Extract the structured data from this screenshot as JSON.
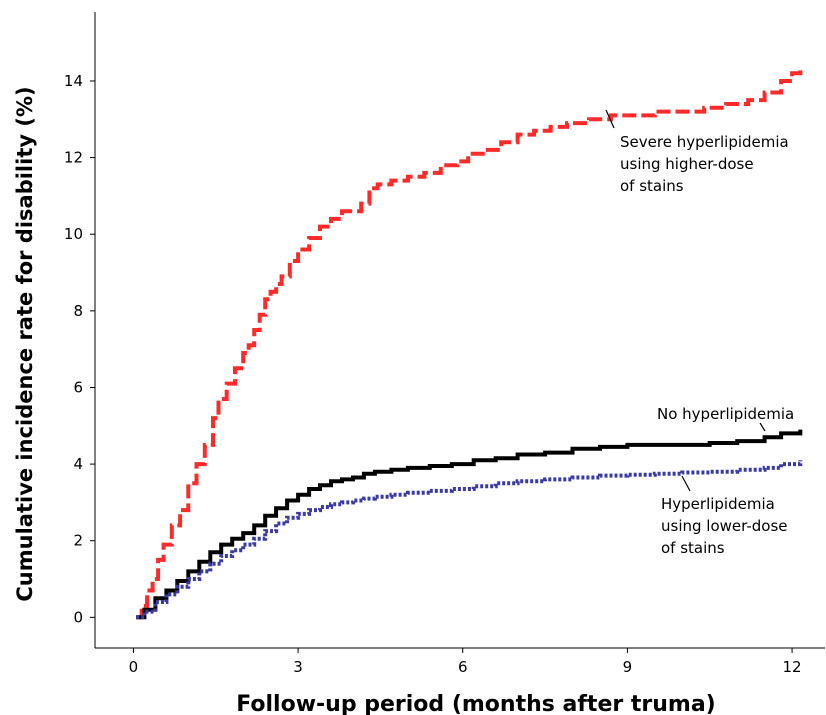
{
  "chart_data": {
    "type": "line",
    "title": "",
    "xlabel": "Follow-up period (months after truma)",
    "ylabel": "Cumulative incidence rate for disability (%)",
    "xlim": [
      -0.7,
      12.6
    ],
    "ylim": [
      -0.8,
      15.8
    ],
    "x_ticks": [
      0,
      3,
      6,
      9,
      12
    ],
    "y_ticks": [
      0,
      2,
      4,
      6,
      8,
      10,
      12,
      14
    ],
    "grid": false,
    "legend": "none (direct labels)",
    "series": [
      {
        "name": "Severe hyperlipidemia using higher-dose of stains",
        "color": "#ff2a2a",
        "style": "dashed",
        "points": [
          [
            0.05,
            0
          ],
          [
            0.15,
            0.3
          ],
          [
            0.25,
            0.7
          ],
          [
            0.35,
            1.0
          ],
          [
            0.45,
            1.5
          ],
          [
            0.55,
            1.9
          ],
          [
            0.7,
            2.4
          ],
          [
            0.85,
            2.8
          ],
          [
            1.0,
            3.5
          ],
          [
            1.15,
            4.0
          ],
          [
            1.3,
            4.5
          ],
          [
            1.45,
            5.2
          ],
          [
            1.55,
            5.7
          ],
          [
            1.7,
            6.1
          ],
          [
            1.85,
            6.5
          ],
          [
            2.0,
            6.9
          ],
          [
            2.1,
            7.1
          ],
          [
            2.2,
            7.5
          ],
          [
            2.3,
            7.9
          ],
          [
            2.4,
            8.3
          ],
          [
            2.5,
            8.5
          ],
          [
            2.6,
            8.7
          ],
          [
            2.7,
            8.9
          ],
          [
            2.85,
            9.3
          ],
          [
            3.0,
            9.6
          ],
          [
            3.2,
            9.9
          ],
          [
            3.4,
            10.2
          ],
          [
            3.6,
            10.4
          ],
          [
            3.8,
            10.6
          ],
          [
            4.0,
            10.6
          ],
          [
            4.15,
            10.8
          ],
          [
            4.3,
            11.2
          ],
          [
            4.45,
            11.3
          ],
          [
            4.7,
            11.4
          ],
          [
            5.0,
            11.5
          ],
          [
            5.3,
            11.6
          ],
          [
            5.6,
            11.8
          ],
          [
            5.9,
            11.9
          ],
          [
            6.1,
            12.1
          ],
          [
            6.4,
            12.2
          ],
          [
            6.7,
            12.4
          ],
          [
            7.0,
            12.6
          ],
          [
            7.3,
            12.7
          ],
          [
            7.6,
            12.8
          ],
          [
            7.9,
            12.9
          ],
          [
            8.3,
            13.0
          ],
          [
            8.7,
            13.1
          ],
          [
            9.0,
            13.1
          ],
          [
            9.5,
            13.2
          ],
          [
            10.0,
            13.2
          ],
          [
            10.4,
            13.3
          ],
          [
            10.8,
            13.4
          ],
          [
            11.2,
            13.5
          ],
          [
            11.5,
            13.7
          ],
          [
            11.8,
            14.0
          ],
          [
            12.0,
            14.2
          ],
          [
            12.15,
            14.4
          ]
        ]
      },
      {
        "name": "No hyperlipidemia",
        "color": "#000000",
        "style": "solid",
        "points": [
          [
            0.05,
            0
          ],
          [
            0.2,
            0.2
          ],
          [
            0.4,
            0.5
          ],
          [
            0.6,
            0.7
          ],
          [
            0.8,
            0.95
          ],
          [
            1.0,
            1.2
          ],
          [
            1.2,
            1.45
          ],
          [
            1.4,
            1.7
          ],
          [
            1.6,
            1.9
          ],
          [
            1.8,
            2.05
          ],
          [
            2.0,
            2.2
          ],
          [
            2.2,
            2.4
          ],
          [
            2.4,
            2.65
          ],
          [
            2.6,
            2.85
          ],
          [
            2.8,
            3.05
          ],
          [
            3.0,
            3.2
          ],
          [
            3.2,
            3.35
          ],
          [
            3.4,
            3.45
          ],
          [
            3.6,
            3.55
          ],
          [
            3.8,
            3.6
          ],
          [
            4.0,
            3.65
          ],
          [
            4.2,
            3.75
          ],
          [
            4.4,
            3.8
          ],
          [
            4.7,
            3.85
          ],
          [
            5.0,
            3.9
          ],
          [
            5.4,
            3.95
          ],
          [
            5.8,
            4.0
          ],
          [
            6.2,
            4.1
          ],
          [
            6.6,
            4.15
          ],
          [
            7.0,
            4.25
          ],
          [
            7.5,
            4.3
          ],
          [
            8.0,
            4.4
          ],
          [
            8.5,
            4.45
          ],
          [
            9.0,
            4.5
          ],
          [
            9.5,
            4.5
          ],
          [
            10.0,
            4.5
          ],
          [
            10.5,
            4.55
          ],
          [
            11.0,
            4.6
          ],
          [
            11.5,
            4.7
          ],
          [
            11.8,
            4.8
          ],
          [
            12.15,
            4.9
          ]
        ]
      },
      {
        "name": "Hyperlipidemia using lower-dose of stains",
        "color": "#3a3aa0",
        "style": "dotted",
        "points": [
          [
            0.05,
            0
          ],
          [
            0.2,
            0.15
          ],
          [
            0.4,
            0.4
          ],
          [
            0.6,
            0.6
          ],
          [
            0.8,
            0.8
          ],
          [
            1.0,
            1.0
          ],
          [
            1.2,
            1.2
          ],
          [
            1.4,
            1.4
          ],
          [
            1.6,
            1.6
          ],
          [
            1.8,
            1.75
          ],
          [
            2.0,
            1.9
          ],
          [
            2.2,
            2.05
          ],
          [
            2.4,
            2.25
          ],
          [
            2.6,
            2.45
          ],
          [
            2.8,
            2.6
          ],
          [
            3.0,
            2.7
          ],
          [
            3.2,
            2.8
          ],
          [
            3.4,
            2.88
          ],
          [
            3.6,
            2.95
          ],
          [
            3.8,
            3.0
          ],
          [
            4.0,
            3.05
          ],
          [
            4.2,
            3.1
          ],
          [
            4.4,
            3.15
          ],
          [
            4.7,
            3.2
          ],
          [
            5.0,
            3.25
          ],
          [
            5.4,
            3.3
          ],
          [
            5.8,
            3.35
          ],
          [
            6.2,
            3.42
          ],
          [
            6.6,
            3.5
          ],
          [
            7.0,
            3.55
          ],
          [
            7.5,
            3.6
          ],
          [
            8.0,
            3.65
          ],
          [
            8.5,
            3.7
          ],
          [
            9.0,
            3.72
          ],
          [
            9.5,
            3.75
          ],
          [
            10.0,
            3.78
          ],
          [
            10.5,
            3.8
          ],
          [
            11.0,
            3.85
          ],
          [
            11.5,
            3.9
          ],
          [
            11.8,
            4.0
          ],
          [
            12.15,
            4.1
          ]
        ]
      }
    ],
    "annotations": [
      {
        "lines": [
          "Severe hyperlipidemia",
          "using higher-dose",
          "of stains"
        ],
        "series": 0
      },
      {
        "lines": [
          "No hyperlipidemia"
        ],
        "series": 1
      },
      {
        "lines": [
          "Hyperlipidemia",
          "using lower-dose",
          "of stains"
        ],
        "series": 2
      }
    ]
  }
}
